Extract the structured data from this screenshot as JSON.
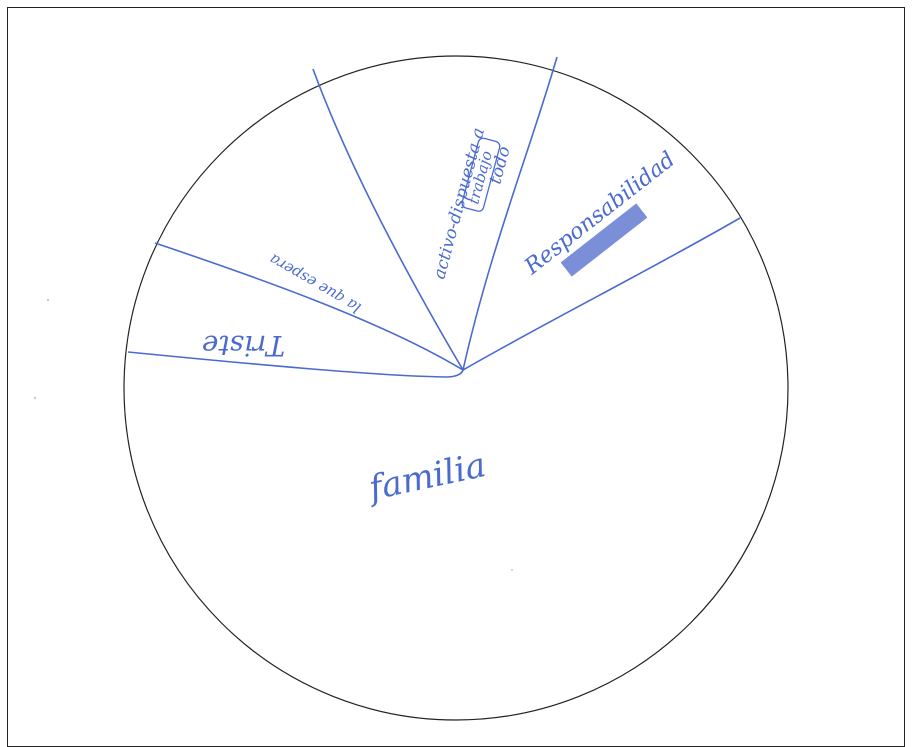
{
  "drawing": {
    "ink_color": "#4a6ad0",
    "redaction_color": "#7b8fd8",
    "circle_color": "#222222",
    "segments": [
      {
        "label": "Triste"
      },
      {
        "label": "la que espera"
      },
      {
        "label": "activo-dispuesta a"
      },
      {
        "label": "trabajo",
        "boxed": true
      },
      {
        "label": "todo"
      },
      {
        "label": "Responsabilidad"
      },
      {
        "label": "familia"
      }
    ]
  }
}
